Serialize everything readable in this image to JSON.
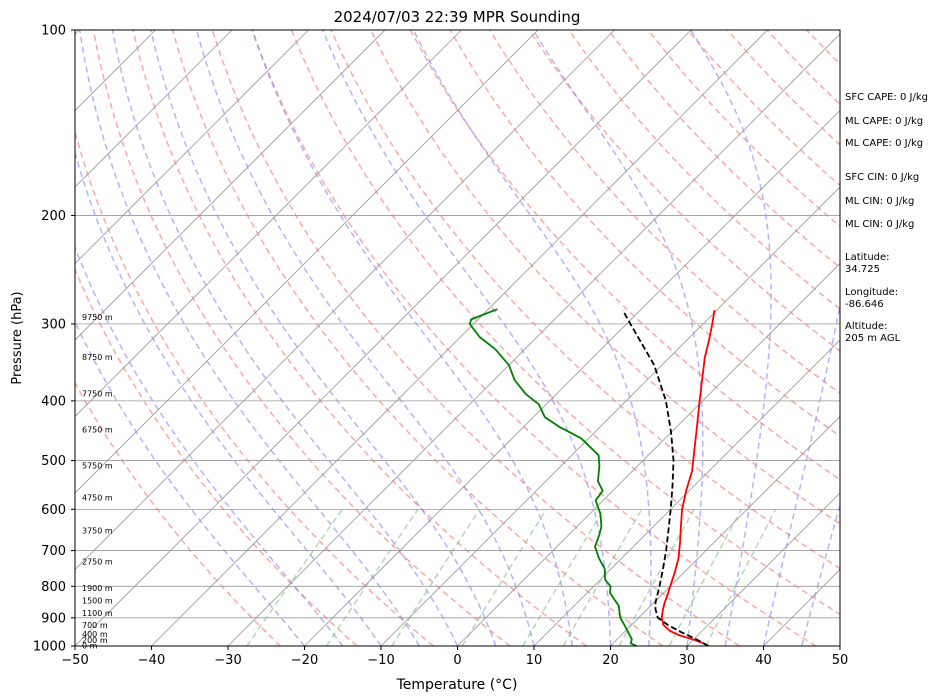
{
  "chart_data": {
    "type": "line",
    "title": "2024/07/03 22:39 MPR Sounding",
    "xlabel": "Temperature (°C)",
    "ylabel": "Pressure (hPa)",
    "xlim": [
      -50,
      50
    ],
    "ylim": [
      1000,
      100
    ],
    "y_scale": "log",
    "skew": true,
    "grid": true,
    "x_ticks": [
      -50,
      -40,
      -30,
      -20,
      -10,
      0,
      10,
      20,
      30,
      40,
      50
    ],
    "y_ticks": [
      100,
      200,
      300,
      400,
      500,
      600,
      700,
      800,
      900,
      1000
    ],
    "series": [
      {
        "color": "#ff0000",
        "points": [
          [
            1000,
            32.8
          ],
          [
            990,
            31.8
          ],
          [
            975,
            29.8
          ],
          [
            960,
            27.5
          ],
          [
            945,
            25.8
          ],
          [
            925,
            24.2
          ],
          [
            900,
            23.0
          ],
          [
            870,
            22.0
          ],
          [
            850,
            21.4
          ],
          [
            820,
            20.6
          ],
          [
            800,
            20.0
          ],
          [
            760,
            18.8
          ],
          [
            720,
            17.4
          ],
          [
            680,
            15.6
          ],
          [
            640,
            13.6
          ],
          [
            600,
            11.5
          ],
          [
            560,
            9.6
          ],
          [
            520,
            7.8
          ],
          [
            480,
            5.3
          ],
          [
            440,
            2.6
          ],
          [
            400,
            -0.4
          ],
          [
            370,
            -2.8
          ],
          [
            340,
            -5.4
          ],
          [
            320,
            -7.0
          ],
          [
            300,
            -8.8
          ],
          [
            285,
            -10.3
          ]
        ]
      },
      {
        "color": "#008000",
        "points": [
          [
            1000,
            23.4
          ],
          [
            990,
            22.3
          ],
          [
            975,
            21.9
          ],
          [
            955,
            20.8
          ],
          [
            930,
            19.4
          ],
          [
            900,
            17.6
          ],
          [
            880,
            16.7
          ],
          [
            860,
            15.8
          ],
          [
            840,
            14.4
          ],
          [
            820,
            13.0
          ],
          [
            800,
            12.2
          ],
          [
            780,
            10.6
          ],
          [
            750,
            9.2
          ],
          [
            720,
            7.0
          ],
          [
            690,
            5.0
          ],
          [
            660,
            4.0
          ],
          [
            640,
            3.2
          ],
          [
            610,
            1.4
          ],
          [
            580,
            -1.0
          ],
          [
            560,
            -1.3
          ],
          [
            540,
            -3.2
          ],
          [
            510,
            -5.0
          ],
          [
            490,
            -6.5
          ],
          [
            460,
            -11.0
          ],
          [
            440,
            -15.5
          ],
          [
            425,
            -18.5
          ],
          [
            405,
            -21.0
          ],
          [
            390,
            -24.0
          ],
          [
            370,
            -27.3
          ],
          [
            350,
            -30.0
          ],
          [
            330,
            -33.8
          ],
          [
            315,
            -37.5
          ],
          [
            305,
            -39.5
          ],
          [
            300,
            -40.5
          ],
          [
            295,
            -40.9
          ],
          [
            284,
            -38.8
          ]
        ]
      },
      {
        "color": "#000000",
        "dashed": true,
        "points": [
          [
            1000,
            32.8
          ],
          [
            975,
            30.3
          ],
          [
            950,
            27.5
          ],
          [
            925,
            24.8
          ],
          [
            900,
            22.5
          ],
          [
            870,
            21.0
          ],
          [
            850,
            20.2
          ],
          [
            800,
            18.6
          ],
          [
            750,
            16.8
          ],
          [
            700,
            14.8
          ],
          [
            650,
            12.5
          ],
          [
            600,
            10.0
          ],
          [
            550,
            7.2
          ],
          [
            500,
            4.0
          ],
          [
            450,
            0.0
          ],
          [
            400,
            -4.8
          ],
          [
            350,
            -11.0
          ],
          [
            300,
            -19.5
          ],
          [
            285,
            -22.3
          ]
        ]
      }
    ],
    "height_labels": [
      {
        "text": "0 m",
        "p": 1000
      },
      {
        "text": "200 m",
        "p": 980
      },
      {
        "text": "400 m",
        "p": 958
      },
      {
        "text": "700 m",
        "p": 926
      },
      {
        "text": "1100 m",
        "p": 885
      },
      {
        "text": "1500 m",
        "p": 845
      },
      {
        "text": "1900 m",
        "p": 806
      },
      {
        "text": "2750 m",
        "p": 731
      },
      {
        "text": "3750 m",
        "p": 650
      },
      {
        "text": "4750 m",
        "p": 575
      },
      {
        "text": "5750 m",
        "p": 510
      },
      {
        "text": "6750 m",
        "p": 446
      },
      {
        "text": "7750 m",
        "p": 390
      },
      {
        "text": "8750 m",
        "p": 340
      },
      {
        "text": "9750 m",
        "p": 293
      }
    ],
    "colors": {
      "dry_adiabat": "#ff8080",
      "moist_adiabat": "#8080ff",
      "mixing_ratio": "#80c080",
      "isotherm": "#999999"
    }
  },
  "side_panel": {
    "sfc_cape": "SFC CAPE: 0 J/kg",
    "ml_cape_1": "ML CAPE: 0 J/kg",
    "ml_cape_2": "ML CAPE: 0 J/kg",
    "sfc_cin": "SFC CIN: 0 J/kg",
    "ml_cin_1": "ML CIN: 0 J/kg",
    "ml_cin_2": "ML CIN: 0 J/kg",
    "latitude": "Latitude:\n34.725",
    "longitude": "Longitude:\n-86.646",
    "altitude": "Altitude:\n205 m AGL"
  }
}
